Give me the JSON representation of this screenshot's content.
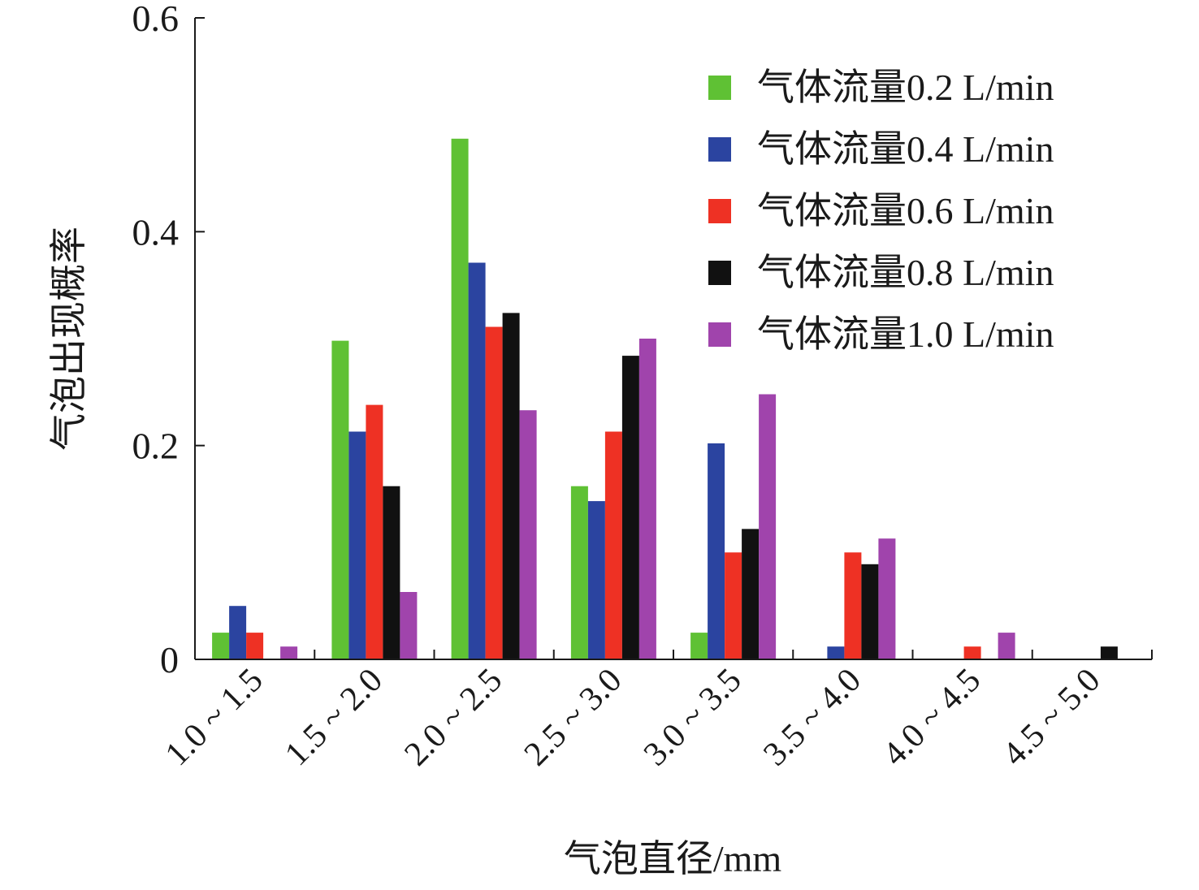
{
  "chart_data": {
    "type": "bar",
    "title": "",
    "xlabel": "气泡直径/mm",
    "ylabel": "气泡出现概率",
    "ylim": [
      0,
      0.6
    ],
    "yticks": [
      0,
      0.2,
      0.4,
      0.6
    ],
    "ytick_labels": [
      "0",
      "0.2",
      "0.4",
      "0.6"
    ],
    "categories": [
      "1.0 ~ 1.5",
      "1.5 ~ 2.0",
      "2.0 ~ 2.5",
      "2.5 ~ 3.0",
      "3.0 ~ 3.5",
      "3.5 ~ 4.0",
      "4.0 ~ 4.5",
      "4.5 ~ 5.0"
    ],
    "legend_position": "top-right",
    "grid": false,
    "series": [
      {
        "name": "气体流量0.2 L/min",
        "color": "#5fc134",
        "values": [
          0.025,
          0.298,
          0.487,
          0.162,
          0.025,
          0,
          0,
          0
        ]
      },
      {
        "name": "气体流量0.4 L/min",
        "color": "#2b44a0",
        "values": [
          0.05,
          0.213,
          0.371,
          0.148,
          0.202,
          0.012,
          0,
          0
        ]
      },
      {
        "name": "气体流量0.6 L/min",
        "color": "#ee3124",
        "values": [
          0.025,
          0.238,
          0.311,
          0.213,
          0.1,
          0.1,
          0.012,
          0
        ]
      },
      {
        "name": "气体流量0.8 L/min",
        "color": "#111111",
        "values": [
          0,
          0.162,
          0.324,
          0.284,
          0.122,
          0.089,
          0,
          0.012
        ]
      },
      {
        "name": "气体流量1.0 L/min",
        "color": "#a044ac",
        "values": [
          0.012,
          0.063,
          0.233,
          0.3,
          0.248,
          0.113,
          0.025,
          0
        ]
      }
    ]
  }
}
